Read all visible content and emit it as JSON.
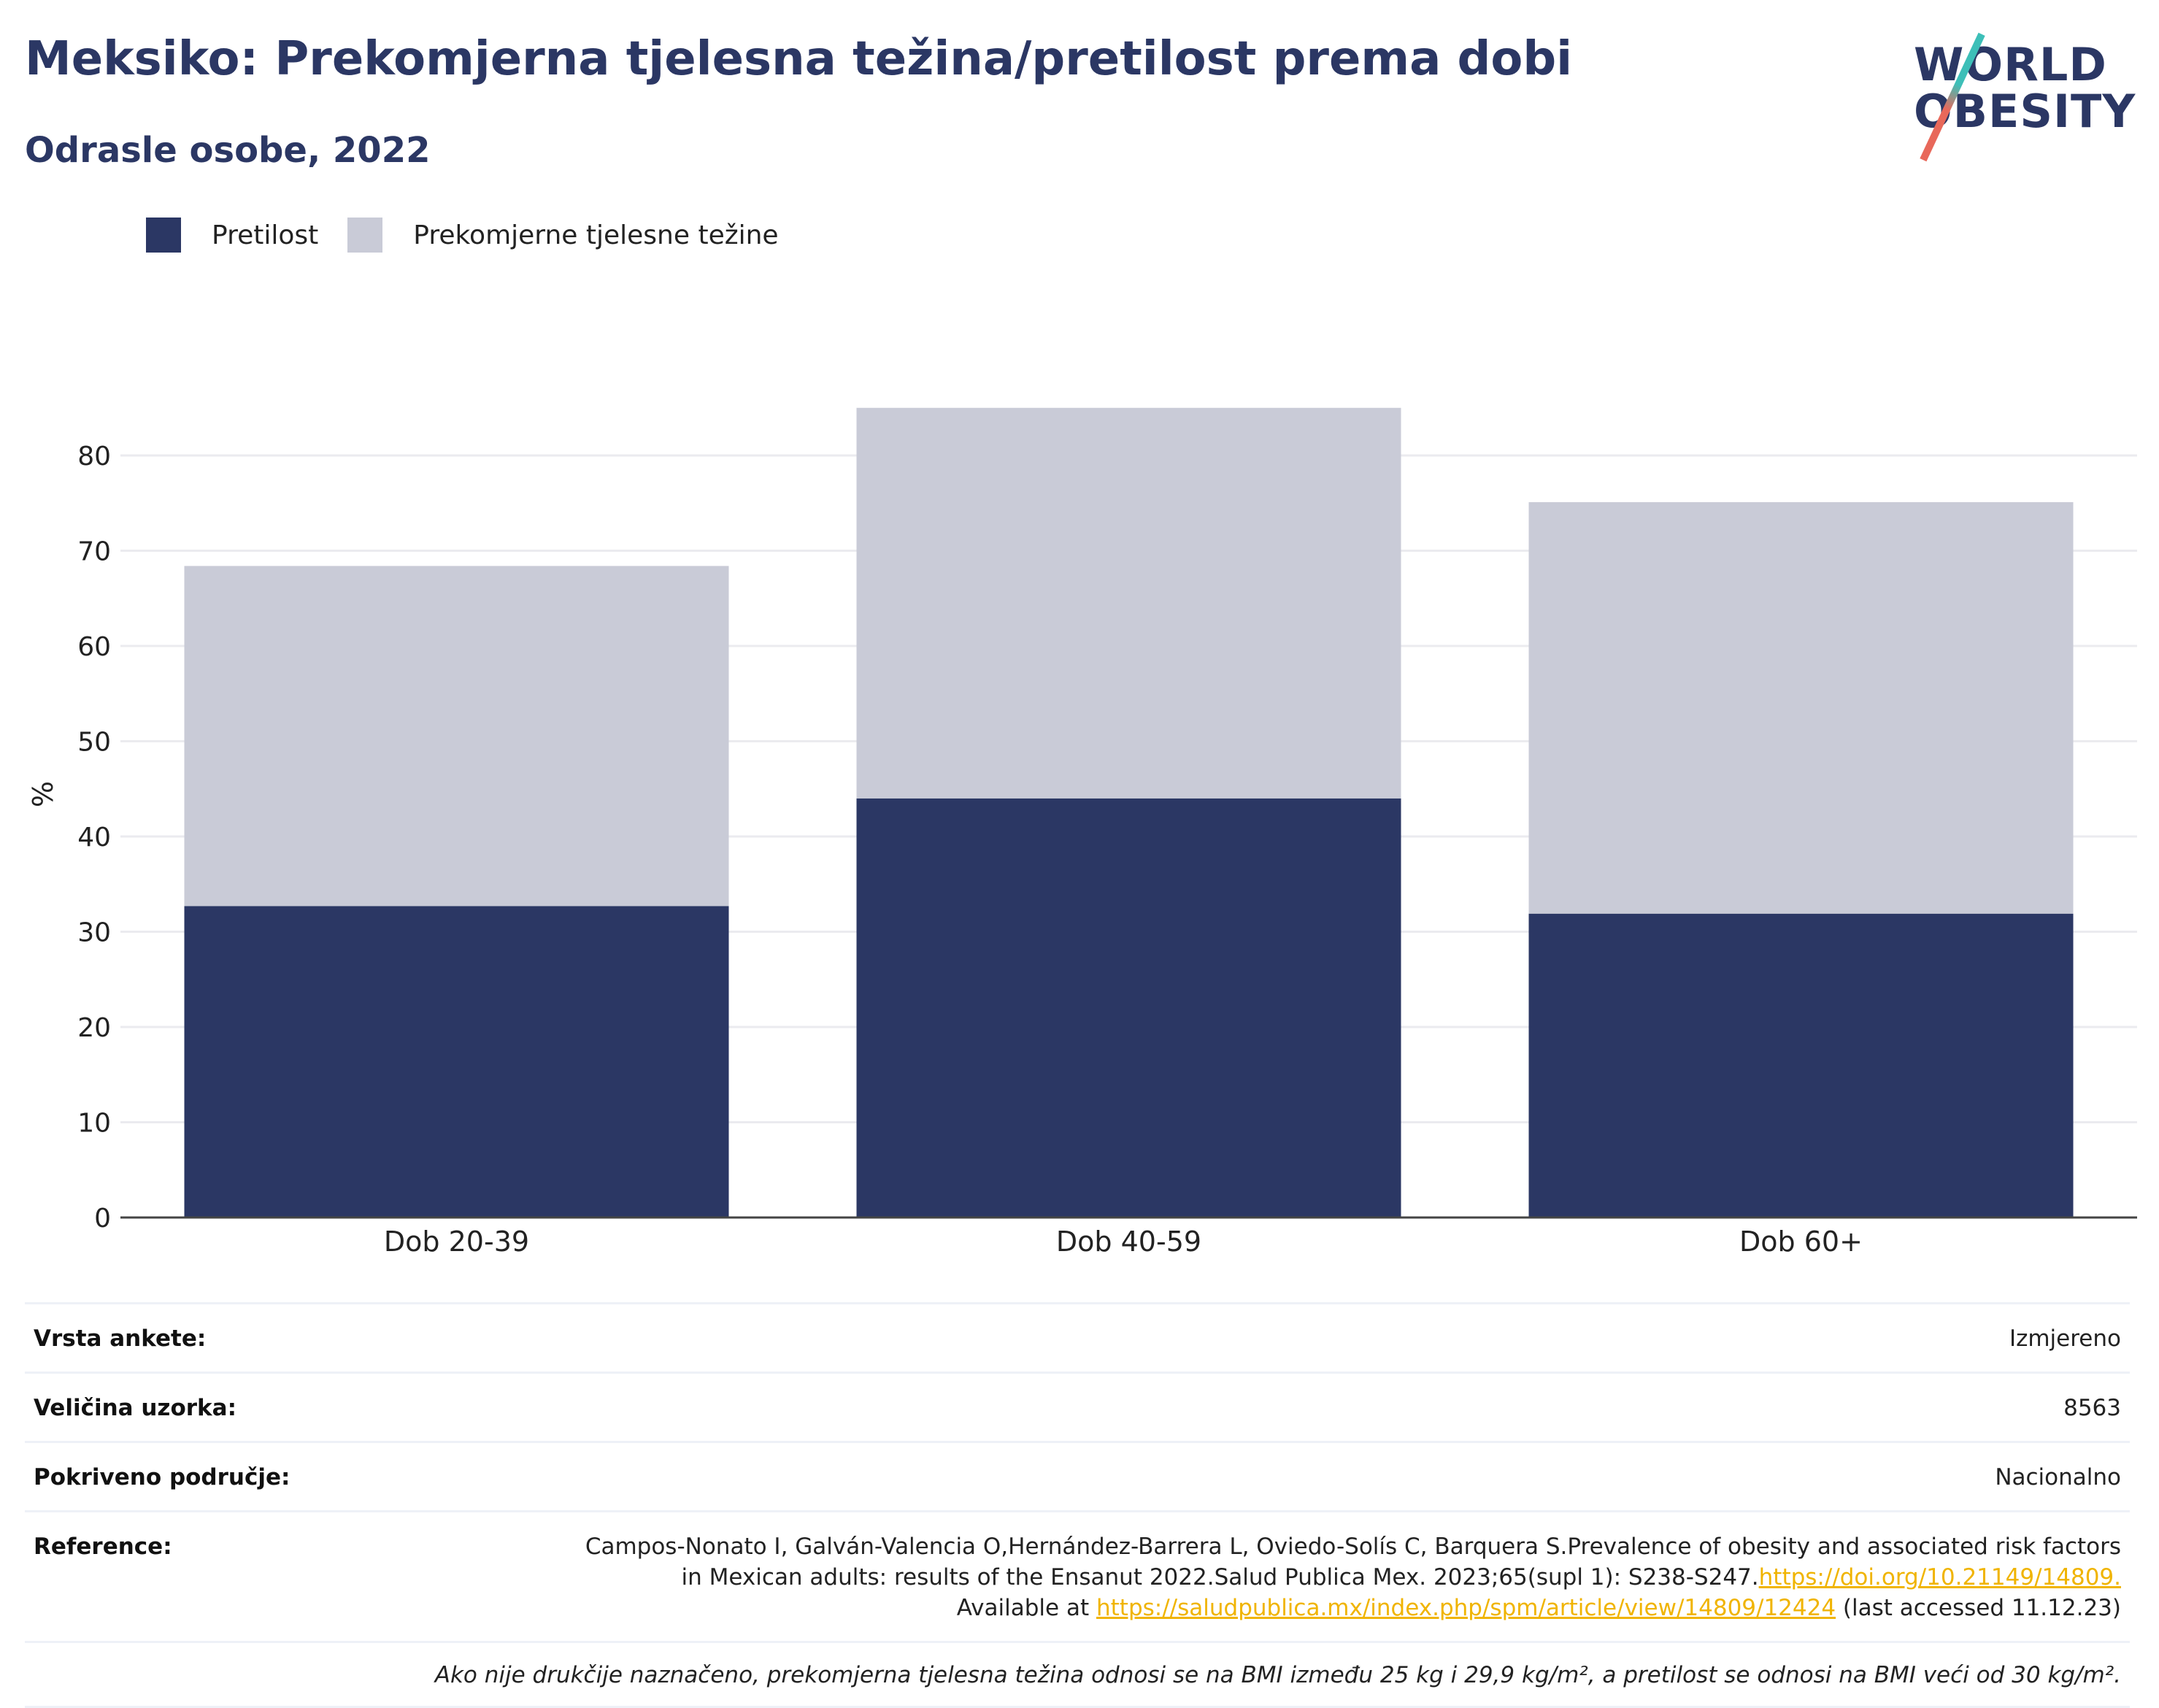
{
  "title": "Meksiko: Prekomjerna tjelesna težina/pretilost prema dobi",
  "subtitle": "Odrasle osobe, 2022",
  "logo": {
    "line1": "WORLD",
    "line2": "OBESITY"
  },
  "legend": [
    {
      "label": "Pretilost",
      "color": "#2b3764"
    },
    {
      "label": "Prekomjerne tjelesne težine",
      "color": "#c9cbd7"
    }
  ],
  "chart_data": {
    "type": "bar",
    "stacked": true,
    "categories": [
      "Dob 20-39",
      "Dob 40-59",
      "Dob 60+"
    ],
    "series": [
      {
        "name": "Pretilost",
        "values": [
          32.7,
          44.0,
          31.9
        ],
        "color": "#2b3764"
      },
      {
        "name": "Prekomjerne tjelesne težine",
        "values": [
          35.7,
          41.0,
          43.2
        ],
        "color": "#c9cbd7"
      }
    ],
    "ylabel": "%",
    "ylim": [
      0,
      90
    ],
    "yticks": [
      0,
      10,
      20,
      30,
      40,
      50,
      60,
      70,
      80
    ],
    "grid": true,
    "legend_position": "top-left"
  },
  "info": {
    "survey_type": {
      "label": "Vrsta ankete:",
      "value": "Izmjereno"
    },
    "sample_size": {
      "label": "Veličina uzorka:",
      "value": "8563"
    },
    "coverage": {
      "label": "Pokriveno područje:",
      "value": "Nacionalno"
    },
    "reference": {
      "label": "Reference:",
      "line1": "Campos-Nonato I, Galván-Valencia O,Hernández-Barrera L, Oviedo-Solís C, Barquera S.Prevalence of obesity and associated risk factors",
      "line2_text": "in Mexican adults: results of the Ensanut 2022.Salud Publica Mex. 2023;65(supl 1): S238-S247.",
      "line2_link": "https://doi.org/10.21149/14809.",
      "line3_prefix": "Available at ",
      "line3_link": "https://saludpublica.mx/index.php/spm/article/view/14809/12424",
      "line3_suffix": " (last accessed 11.12.23)"
    },
    "note": "Ako nije drukčije naznačeno, prekomjerna tjelesna težina odnosi se na BMI između 25 kg i 29,9 kg/m², a pretilost se odnosi na BMI veći od 30 kg/m²."
  }
}
